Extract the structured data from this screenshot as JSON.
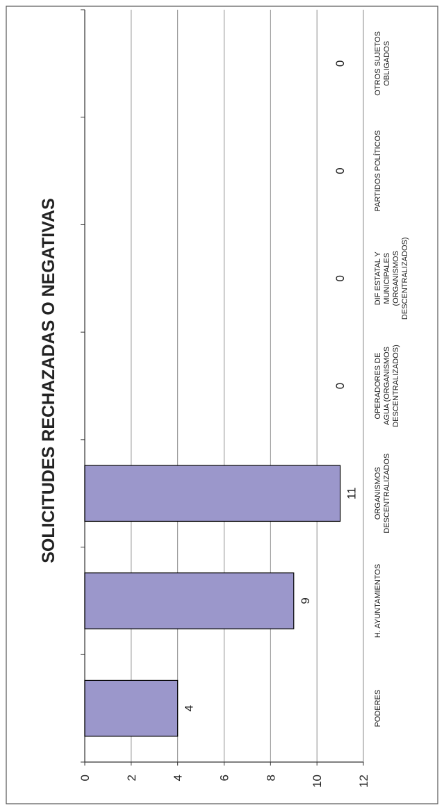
{
  "chart_data": {
    "type": "bar",
    "orientation": "rotated-90-ccw",
    "title": "SOLICITUDES RECHAZADAS O NEGATIVAS",
    "xlabel": "",
    "ylabel": "",
    "ylim": [
      0,
      12
    ],
    "yticks": [
      "0",
      "2",
      "4",
      "6",
      "8",
      "10",
      "12"
    ],
    "grid": true,
    "categories": [
      [
        "PODERES"
      ],
      [
        "H. AYUNTAMIENTOS"
      ],
      [
        "ORGANISMOS",
        "DESCENTRALIZADOS"
      ],
      [
        "OPERADORES DE",
        "AGUA (ORGANISMOS",
        "DESCENTRALIZADOS)"
      ],
      [
        "DIF ESTATAL Y",
        "MUNICIPALES",
        "(ORGANISMOS",
        "DESCENTRALIZADOS)"
      ],
      [
        "PARTIDOS POLÍTICOS"
      ],
      [
        "OTROS SUJETOS",
        "OBLIGADOS"
      ]
    ],
    "values": [
      4,
      9,
      11,
      0,
      0,
      0,
      0
    ],
    "data_labels": [
      "4",
      "9",
      "11",
      "0",
      "0",
      "0",
      "0"
    ],
    "bar_color": "#9b97cb",
    "bar_stroke": "#000000",
    "grid_color": "#8a8a8a"
  }
}
